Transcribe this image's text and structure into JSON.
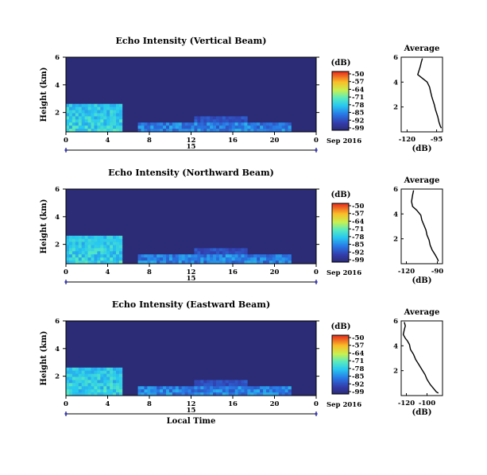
{
  "chart_data": [
    {
      "type": "heatmap",
      "title": "Echo Intensity (Vertical Beam)",
      "ylabel": "Height (km)",
      "yticks": [
        "6",
        "4",
        "2"
      ],
      "xticks": [
        "0",
        "4",
        "8",
        "12",
        "16",
        "20",
        "0"
      ],
      "date_day": "15",
      "date_month": "Sep 2016",
      "colorbar_unit": "(dB)",
      "colorbar_ticks": [
        "-50",
        "-57",
        "-64",
        "-71",
        "-78",
        "-85",
        "-92",
        "-99"
      ],
      "profile": {
        "title": "Average",
        "xlabel": "(dB)",
        "xticks": [
          "-120",
          "-95"
        ],
        "yticks": [
          "6",
          "4",
          "2"
        ],
        "xlim": [
          -125,
          -90
        ],
        "ylim": [
          0,
          6
        ],
        "points": [
          [
            -107,
            5.9
          ],
          [
            -108,
            5.6
          ],
          [
            -109,
            5.2
          ],
          [
            -110,
            4.9
          ],
          [
            -111,
            4.6
          ],
          [
            -107,
            4.3
          ],
          [
            -103,
            4.0
          ],
          [
            -101,
            3.6
          ],
          [
            -100,
            3.2
          ],
          [
            -99,
            2.8
          ],
          [
            -98,
            2.5
          ],
          [
            -97,
            2.2
          ],
          [
            -96,
            1.8
          ],
          [
            -95,
            1.5
          ],
          [
            -94,
            1.2
          ],
          [
            -93,
            0.8
          ],
          [
            -92,
            0.5
          ],
          [
            -91,
            0.3
          ]
        ]
      }
    },
    {
      "type": "heatmap",
      "title": "Echo Intensity (Northward Beam)",
      "ylabel": "Height (km)",
      "yticks": [
        "6",
        "4",
        "2"
      ],
      "xticks": [
        "0",
        "4",
        "8",
        "12",
        "16",
        "20",
        "0"
      ],
      "date_day": "15",
      "date_month": "Sep 2016",
      "colorbar_unit": "(dB)",
      "colorbar_ticks": [
        "-50",
        "-57",
        "-64",
        "-71",
        "-78",
        "-85",
        "-92",
        "-99"
      ],
      "profile": {
        "title": "Average",
        "xlabel": "(dB)",
        "xticks": [
          "-120",
          "-90"
        ],
        "yticks": [
          "6",
          "4",
          "2"
        ],
        "xlim": [
          -125,
          -85
        ],
        "ylim": [
          0,
          6
        ],
        "points": [
          [
            -113,
            5.9
          ],
          [
            -114,
            5.5
          ],
          [
            -115,
            5.0
          ],
          [
            -114,
            4.6
          ],
          [
            -110,
            4.3
          ],
          [
            -106,
            3.9
          ],
          [
            -105,
            3.5
          ],
          [
            -103,
            3.1
          ],
          [
            -101,
            2.7
          ],
          [
            -100,
            2.3
          ],
          [
            -98,
            1.9
          ],
          [
            -97,
            1.5
          ],
          [
            -95,
            1.1
          ],
          [
            -92,
            0.7
          ],
          [
            -90,
            0.4
          ],
          [
            -89,
            0.2
          ]
        ]
      }
    },
    {
      "type": "heatmap",
      "title": "Echo Intensity (Eastward Beam)",
      "ylabel": "Height (km)",
      "yticks": [
        "6",
        "4",
        "2"
      ],
      "xticks": [
        "0",
        "4",
        "8",
        "12",
        "16",
        "20",
        "0"
      ],
      "date_day": "15",
      "date_month": "Sep 2016",
      "colorbar_unit": "(dB)",
      "colorbar_ticks": [
        "-50",
        "-57",
        "-64",
        "-71",
        "-78",
        "-85",
        "-92",
        "-99"
      ],
      "xlabel": "Local Time",
      "profile": {
        "title": "Average",
        "xlabel": "(dB)",
        "xticks": [
          "-120",
          "-100"
        ],
        "yticks": [
          "6",
          "4",
          "2"
        ],
        "xlim": [
          -125,
          -85
        ],
        "ylim": [
          0,
          6
        ],
        "points": [
          [
            -122,
            5.9
          ],
          [
            -121,
            5.6
          ],
          [
            -122,
            5.3
          ],
          [
            -123,
            4.9
          ],
          [
            -121,
            4.6
          ],
          [
            -119,
            4.4
          ],
          [
            -117,
            4.1
          ],
          [
            -116,
            3.7
          ],
          [
            -113,
            3.3
          ],
          [
            -111,
            2.9
          ],
          [
            -108,
            2.5
          ],
          [
            -105,
            2.1
          ],
          [
            -102,
            1.7
          ],
          [
            -100,
            1.3
          ],
          [
            -97,
            0.9
          ],
          [
            -94,
            0.6
          ],
          [
            -91,
            0.3
          ],
          [
            -89,
            0.2
          ]
        ]
      }
    }
  ]
}
